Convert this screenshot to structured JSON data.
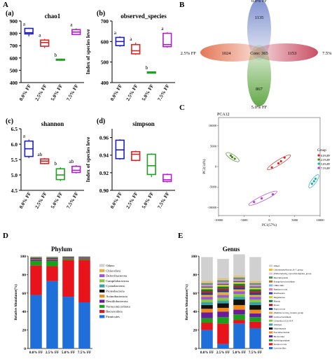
{
  "panel_labels": {
    "A": "A",
    "B": "B",
    "C": "C",
    "D": "D",
    "E": "E",
    "a": "(a)",
    "b": "(b)",
    "c": "(c)",
    "d": "(d)"
  },
  "colors": {
    "g0": "#1f1fbf",
    "g1": "#d62728",
    "g2": "#22a022",
    "g3": "#b020c8"
  },
  "chart_data": [
    {
      "type": "box",
      "panel": "(a)",
      "title": "chao1",
      "ylabel": "Index of species leve",
      "categories": [
        "0.0% FF",
        "2.5% FF",
        "5.0% FF",
        "7.5% FF"
      ],
      "ylim": [
        400,
        900
      ],
      "yticks": [
        400,
        500,
        600,
        700,
        800,
        900
      ],
      "boxes": [
        {
          "min": 775,
          "q1": 795,
          "med": 805,
          "q3": 840,
          "max": 845
        },
        {
          "min": 680,
          "q1": 695,
          "med": 725,
          "q3": 745,
          "max": 755
        },
        {
          "min": 580,
          "q1": 582,
          "med": 585,
          "q3": 590,
          "max": 592
        },
        {
          "min": 785,
          "q1": 790,
          "med": 810,
          "q3": 830,
          "max": 840
        }
      ],
      "letters": [
        "a",
        "a",
        "b",
        "a"
      ]
    },
    {
      "type": "box",
      "panel": "(b)",
      "title": "observed_species",
      "ylabel": "Index of species leve",
      "categories": [
        "0.0% FF",
        "2.5% FF",
        "5.0% FF",
        "7.5% FF"
      ],
      "ylim": [
        400,
        700
      ],
      "yticks": [
        400,
        500,
        600,
        700
      ],
      "boxes": [
        {
          "min": 575,
          "q1": 580,
          "med": 600,
          "q3": 620,
          "max": 625
        },
        {
          "min": 535,
          "q1": 540,
          "med": 555,
          "q3": 585,
          "max": 595
        },
        {
          "min": 444,
          "q1": 446,
          "med": 449,
          "q3": 452,
          "max": 454
        },
        {
          "min": 570,
          "q1": 575,
          "med": 585,
          "q3": 640,
          "max": 645
        }
      ],
      "letters": [
        "a",
        "a",
        "b",
        "a"
      ]
    },
    {
      "type": "box",
      "panel": "(c)",
      "title": "shannon",
      "ylabel": "Index of species leve",
      "categories": [
        "0.0% FF",
        "2.5% FF",
        "5.0% FF",
        "7.5% FF"
      ],
      "ylim": [
        4.5,
        6.5
      ],
      "yticks": [
        4.5,
        5.0,
        5.5,
        6.0,
        6.5
      ],
      "boxes": [
        {
          "min": 5.55,
          "q1": 5.6,
          "med": 5.85,
          "q3": 6.1,
          "max": 6.15
        },
        {
          "min": 5.35,
          "q1": 5.37,
          "med": 5.45,
          "q3": 5.52,
          "max": 5.55
        },
        {
          "min": 4.8,
          "q1": 4.85,
          "med": 5.0,
          "q3": 5.2,
          "max": 5.25
        },
        {
          "min": 5.05,
          "q1": 5.08,
          "med": 5.15,
          "q3": 5.28,
          "max": 5.32
        }
      ],
      "letters": [
        "a",
        "ab",
        "b",
        "ab"
      ]
    },
    {
      "type": "box",
      "panel": "(d)",
      "title": "simpson",
      "ylabel": "Index of species leve",
      "categories": [
        "0.0% FF",
        "2.5% FF",
        "5.0% FF",
        "7.5% FF"
      ],
      "ylim": [
        0.9,
        0.97
      ],
      "yticks": [
        0.9,
        0.92,
        0.94,
        0.96
      ],
      "boxes": [
        {
          "min": 0.935,
          "q1": 0.936,
          "med": 0.946,
          "q3": 0.957,
          "max": 0.958
        },
        {
          "min": 0.933,
          "q1": 0.934,
          "med": 0.941,
          "q3": 0.944,
          "max": 0.945
        },
        {
          "min": 0.915,
          "q1": 0.918,
          "med": 0.928,
          "q3": 0.941,
          "max": 0.942
        },
        {
          "min": 0.909,
          "q1": 0.91,
          "med": 0.912,
          "q3": 0.918,
          "max": 0.919
        }
      ],
      "letters": []
    },
    {
      "type": "venn",
      "panel": "B",
      "sets": [
        {
          "name": "0.0% FF",
          "unique": 1135
        },
        {
          "name": "7.5% FF",
          "unique": 1153
        },
        {
          "name": "5.0% FF",
          "unique": 867
        },
        {
          "name": "2.5% FF",
          "unique": 1024
        }
      ],
      "core_label": "Core: 365"
    },
    {
      "type": "scatter",
      "panel": "C",
      "title": "PCA12",
      "xlabel": "PC1(57%)",
      "ylabel": "PC2(14%)",
      "xlim": [
        -10000,
        10000
      ],
      "ylim": [
        -12000,
        12000
      ],
      "xticks": [
        -10000,
        -5000,
        0,
        5000,
        10000
      ],
      "yticks": [
        -10000,
        -5000,
        0,
        5000,
        10000
      ],
      "legend_title": "Group",
      "series": [
        {
          "name": "0.0%FF",
          "color": "#d62728",
          "points": [
            [
              1800,
              800
            ],
            [
              2300,
              1300
            ],
            [
              3000,
              2200
            ],
            [
              500,
              -200
            ]
          ]
        },
        {
          "name": "2.5%FF",
          "color": "#4a8a20",
          "points": [
            [
              -7300,
              2300
            ],
            [
              -7600,
              2700
            ],
            [
              -6800,
              1900
            ]
          ]
        },
        {
          "name": "5.0%FF",
          "color": "#20b0b0",
          "points": [
            [
              8400,
              -4200
            ],
            [
              8800,
              -3600
            ],
            [
              9100,
              -3000
            ]
          ]
        },
        {
          "name": "7.5%FF",
          "color": "#b040d0",
          "points": [
            [
              -3000,
              -8700
            ],
            [
              700,
              -6800
            ],
            [
              -1500,
              -7800
            ]
          ]
        }
      ]
    },
    {
      "type": "stacked_bar",
      "panel": "D",
      "title": "Phylum",
      "ylabel": "Relative Abundance(%)",
      "categories": [
        "0.0% FF",
        "2.5% FF",
        "5.0% FF",
        "7.5% FF"
      ],
      "ylim": [
        0,
        100
      ],
      "yticks": [
        0,
        20,
        40,
        60,
        80,
        100
      ],
      "series": [
        {
          "name": "Firmicutes",
          "color": "#1e6fd9",
          "values": [
            58,
            73,
            56,
            50
          ]
        },
        {
          "name": "Bacteroidota",
          "color": "#e8141b",
          "values": [
            32,
            16,
            40,
            46
          ]
        },
        {
          "name": "Verrucomicrobiota",
          "color": "#1aa01a",
          "values": [
            5,
            6,
            1.5,
            1.2
          ]
        },
        {
          "name": "Desulfobacterota",
          "color": "#6a1ba0",
          "values": [
            1.5,
            1.5,
            0.8,
            0.8
          ]
        },
        {
          "name": "Actinobacteriota",
          "color": "#f08a1a",
          "values": [
            0.8,
            0.8,
            0.4,
            0.4
          ]
        },
        {
          "name": "Proteobacteria",
          "color": "#111111",
          "values": [
            0.8,
            0.8,
            0.5,
            0.5
          ]
        },
        {
          "name": "Cyanobacteria",
          "color": "#3aa0a0",
          "values": [
            0.4,
            0.4,
            0.3,
            0.3
          ]
        },
        {
          "name": "Campilobacterota",
          "color": "#86c846",
          "values": [
            0.3,
            0.3,
            0.2,
            0.2
          ]
        },
        {
          "name": "Deferribacterota",
          "color": "#a05ac8",
          "values": [
            0.2,
            0.2,
            0.1,
            0.1
          ]
        },
        {
          "name": "Chloroflexi",
          "color": "#e0b040",
          "values": [
            0.1,
            0.1,
            0.1,
            0.1
          ]
        },
        {
          "name": "Others",
          "color": "#d0d0d0",
          "values": [
            0.9,
            0.9,
            0.1,
            0.4
          ]
        }
      ]
    },
    {
      "type": "stacked_bar",
      "panel": "E",
      "title": "Genus",
      "ylabel": "Relative Abundance(%)",
      "categories": [
        "0.0% FF",
        "2.5% FF",
        "5.0% FF",
        "7.5% FF"
      ],
      "ylim": [
        0,
        100
      ],
      "yticks": [
        0,
        20,
        40,
        60,
        80,
        100
      ],
      "series": [
        {
          "name": "Lactobacillus",
          "color": "#1e6fd9",
          "values": [
            20,
            5,
            27,
            22
          ]
        },
        {
          "name": "Streptococcus",
          "color": "#e8141b",
          "values": [
            8,
            22,
            4,
            7
          ]
        },
        {
          "name": "Subdoligranulum",
          "color": "#1aa01a",
          "values": [
            5,
            7,
            6,
            5
          ]
        },
        {
          "name": "Bacteroides",
          "color": "#6a1ba0",
          "values": [
            6,
            6,
            5,
            4
          ]
        },
        {
          "name": "Faecalibacterium",
          "color": "#f08a1a",
          "values": [
            4,
            4,
            5,
            4
          ]
        },
        {
          "name": "Akkermansia",
          "color": "#111111",
          "values": [
            4,
            5,
            6,
            5
          ]
        },
        {
          "name": "Alistipes",
          "color": "#3aa0a0",
          "values": [
            3,
            3,
            3,
            3
          ]
        },
        {
          "name": "Clostridia_UCG-014",
          "color": "#86c846",
          "values": [
            3,
            3,
            3,
            3
          ]
        },
        {
          "name": "Lachnoclostridium",
          "color": "#a05ac8",
          "values": [
            3,
            3,
            3,
            3
          ]
        },
        {
          "name": "[Ruminococcus]_torques_group",
          "color": "#e0b040",
          "values": [
            2,
            3,
            2,
            2
          ]
        },
        {
          "name": "Peptococcus",
          "color": "#1a3f8a",
          "values": [
            2,
            2,
            2,
            2
          ]
        },
        {
          "name": "Dorea",
          "color": "#b01818",
          "values": [
            2,
            2,
            2,
            2
          ]
        },
        {
          "name": "Blautia",
          "color": "#0e7a3a",
          "values": [
            2,
            2,
            2,
            2
          ]
        },
        {
          "name": "Megamonas",
          "color": "#c8d020",
          "values": [
            2,
            2,
            2,
            2
          ]
        },
        {
          "name": "Romboutsia",
          "color": "#3c3cb0",
          "values": [
            1,
            1,
            1,
            1
          ]
        },
        {
          "name": "Ruminococcus",
          "color": "#e87ab8",
          "values": [
            1,
            1,
            1,
            1
          ]
        },
        {
          "name": "CHKCI001",
          "color": "#7ab8e8",
          "values": [
            1,
            1,
            1,
            1
          ]
        },
        {
          "name": "Erysipelatoclostridium",
          "color": "#a07a40",
          "values": [
            1,
            1,
            1,
            1
          ]
        },
        {
          "name": "Marvinbryantia",
          "color": "#5a8a5a",
          "values": [
            1,
            1,
            1,
            1
          ]
        },
        {
          "name": "[Eubacterium]_coprostanoligenes_group",
          "color": "#d8c8e8",
          "values": [
            1,
            1,
            1,
            1
          ]
        },
        {
          "name": "Christensenellaceae_R-7_group",
          "color": "#f0c020",
          "values": [
            1,
            1,
            1,
            1
          ]
        },
        {
          "name": "Others",
          "color": "#d0d0d0",
          "values": [
            26,
            21,
            23,
            26
          ]
        }
      ]
    }
  ]
}
